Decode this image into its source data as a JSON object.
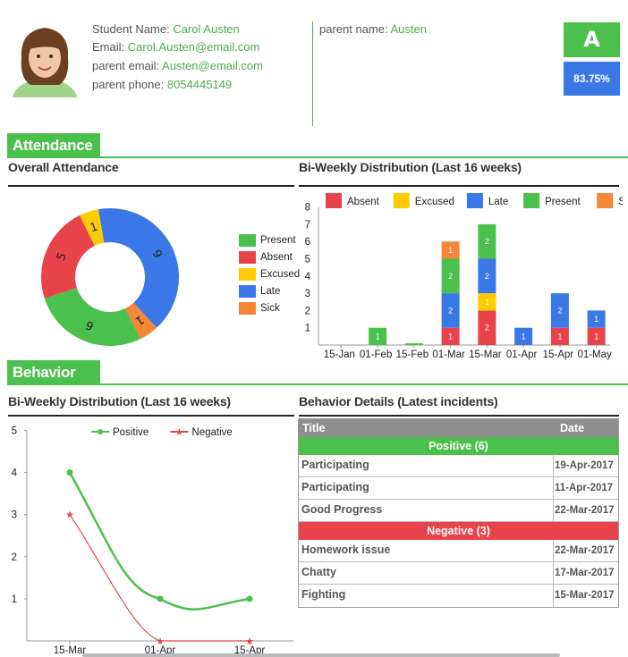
{
  "student": {
    "name_label": "Student Name: ",
    "name": "Carol Austen",
    "email_label": "Email: ",
    "email": "Carol.Austen@email.com",
    "parent_email_label": "parent email: ",
    "parent_email": "Austen@email.com",
    "parent_phone_label": "parent phone: ",
    "parent_phone": "8054445149",
    "parent_name_label": "parent name: ",
    "parent_name": "Austen",
    "grade": "A",
    "percentage": "83.75%"
  },
  "attendance": {
    "section_title": "Attendance",
    "overall_title": "Overall Attendance",
    "biweekly_title": "Bi-Weekly Distribution (Last 16 weeks)"
  },
  "behavior": {
    "section_title": "Behavior",
    "biweekly_title": "Bi-Weekly Distribution (Last 16 weeks)",
    "details_title": "Behavior Details (Latest incidents)",
    "table": {
      "col_title": "Title",
      "col_date": "Date",
      "positive_label": "Positive (6)",
      "negative_label": "Negative (3)",
      "positive": [
        {
          "title": "Participating",
          "date": "19-Apr-2017"
        },
        {
          "title": "Participating",
          "date": "11-Apr-2017"
        },
        {
          "title": "Good Progress",
          "date": "22-Mar-2017"
        }
      ],
      "negative": [
        {
          "title": "Homework issue",
          "date": "22-Mar-2017"
        },
        {
          "title": "Chatty",
          "date": "17-Mar-2017"
        },
        {
          "title": "Fighting",
          "date": "15-Mar-2017"
        }
      ]
    }
  },
  "colors": {
    "present": "#4cc04c",
    "absent": "#e8434a",
    "excused": "#ffcc00",
    "late": "#3b78e7",
    "sick": "#f58538",
    "accent": "#4cc04c"
  },
  "chart_data": [
    {
      "type": "pie",
      "categories": [
        "Present",
        "Absent",
        "Excused",
        "Late",
        "Sick"
      ],
      "values": [
        6,
        5,
        1,
        9,
        1
      ],
      "legend_position": "right",
      "title": "Overall Attendance"
    },
    {
      "type": "bar",
      "stacked": true,
      "title": "Bi-Weekly Distribution (Last 16 weeks)",
      "categories": [
        "15-Jan",
        "01-Feb",
        "15-Feb",
        "01-Mar",
        "15-Mar",
        "01-Apr",
        "15-Apr",
        "01-May"
      ],
      "ylim": [
        0,
        8
      ],
      "yticks": [
        1,
        2,
        3,
        4,
        5,
        6,
        7,
        8
      ],
      "legend_position": "top",
      "series": [
        {
          "name": "Absent",
          "values": [
            0,
            0,
            0,
            1,
            2,
            0,
            1,
            1
          ]
        },
        {
          "name": "Excused",
          "values": [
            0,
            0,
            0,
            0,
            1,
            0,
            0,
            0
          ]
        },
        {
          "name": "Late",
          "values": [
            0,
            0,
            0,
            2,
            2,
            1,
            2,
            1
          ]
        },
        {
          "name": "Present",
          "values": [
            0,
            1,
            0.1,
            2,
            2,
            0,
            0,
            0
          ]
        },
        {
          "name": "Sick",
          "values": [
            0,
            0,
            0,
            1,
            0,
            0,
            0,
            0
          ]
        }
      ]
    },
    {
      "type": "line",
      "title": "Bi-Weekly Distribution (Last 16 weeks)",
      "x": [
        "15-Mar",
        "01-Apr",
        "15-Apr"
      ],
      "ylim": [
        0,
        5
      ],
      "yticks": [
        1,
        2,
        3,
        4,
        5
      ],
      "legend_position": "top",
      "series": [
        {
          "name": "Positive",
          "values": [
            4,
            1,
            1
          ]
        },
        {
          "name": "Negative",
          "values": [
            3,
            0,
            0
          ]
        }
      ]
    }
  ]
}
